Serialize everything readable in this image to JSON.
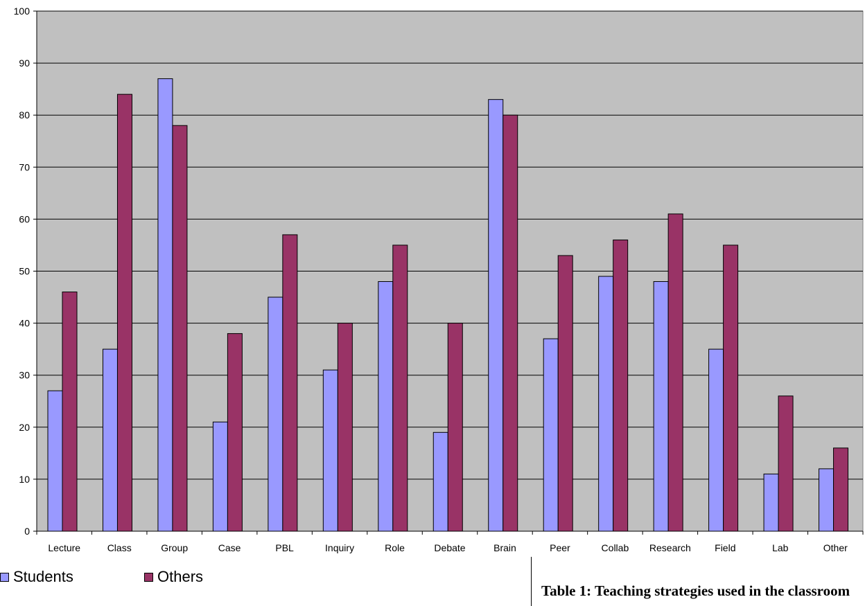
{
  "colors": {
    "plot_bg": "#c0c0c0",
    "students": "#9999ff",
    "others": "#993366",
    "grid": "#000000"
  },
  "chart_data": {
    "type": "bar",
    "categories": [
      "Lecture",
      "Class",
      "Group",
      "Case",
      "PBL",
      "Inquiry",
      "Role",
      "Debate",
      "Brain",
      "Peer",
      "Collab",
      "Research",
      "Field",
      "Lab",
      "Other"
    ],
    "series": [
      {
        "name": "Students",
        "values": [
          27,
          35,
          87,
          21,
          45,
          31,
          48,
          19,
          83,
          37,
          49,
          48,
          35,
          11,
          12
        ]
      },
      {
        "name": "Others",
        "values": [
          46,
          84,
          78,
          38,
          57,
          40,
          55,
          40,
          80,
          53,
          56,
          61,
          55,
          26,
          16
        ]
      }
    ],
    "ylim": [
      0,
      100
    ],
    "yticks": [
      0,
      10,
      20,
      30,
      40,
      50,
      60,
      70,
      80,
      90,
      100
    ],
    "grid": true,
    "legend": "bottom-left"
  },
  "legend": {
    "students_label": "Students",
    "others_label": "Others"
  },
  "caption": "Table 1:  Teaching strategies used in the classroom"
}
